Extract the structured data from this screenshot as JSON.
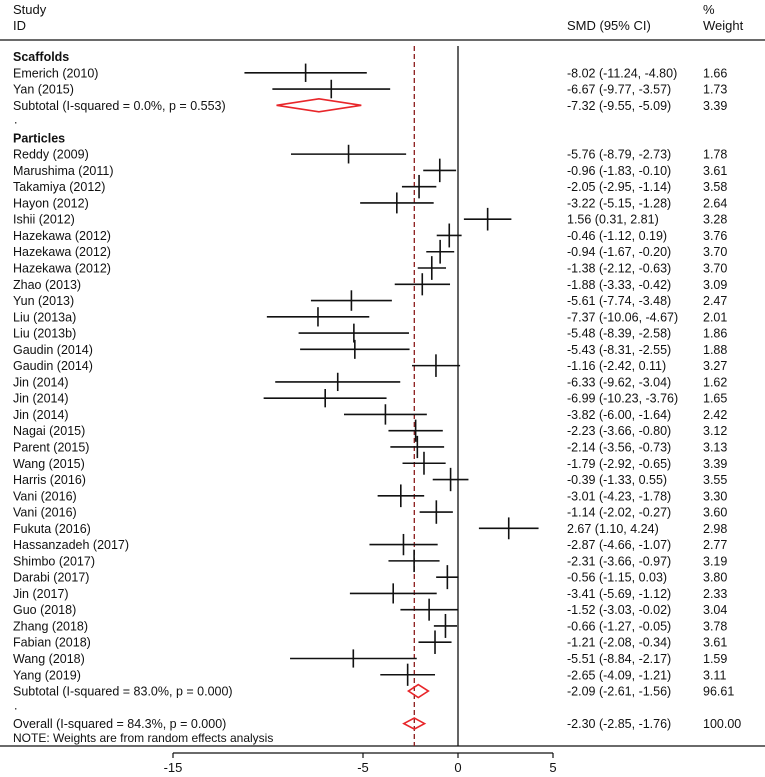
{
  "chart_data": {
    "type": "forest",
    "title": "",
    "xlabel": "",
    "xlim": [
      -15,
      5
    ],
    "xticks": [
      -15,
      -5,
      0,
      5
    ],
    "tick_labels": [
      "-15",
      "-5",
      "0",
      "5"
    ],
    "null_line": 0,
    "overall_line": -2.3,
    "header": {
      "study_line1": "Study",
      "study_line2": "ID",
      "effect": "SMD (95% CI)",
      "weight_line1": "%",
      "weight_line2": "Weight"
    },
    "note": "NOTE: Weights are from random effects analysis",
    "rows": [
      {
        "kind": "section",
        "label": "Scaffolds"
      },
      {
        "kind": "study",
        "label": "Emerich (2010)",
        "est": -8.02,
        "lo": -11.24,
        "hi": -4.8,
        "ci": "-8.02 (-11.24, -4.80)",
        "weight": "1.66"
      },
      {
        "kind": "study",
        "label": "Yan (2015)",
        "est": -6.67,
        "lo": -9.77,
        "hi": -3.57,
        "ci": "-6.67 (-9.77, -3.57)",
        "weight": "1.73"
      },
      {
        "kind": "subtotal",
        "label": "Subtotal  (I-squared = 0.0%, p = 0.553)",
        "est": -7.32,
        "lo": -9.55,
        "hi": -5.09,
        "ci": "-7.32 (-9.55, -5.09)",
        "weight": "3.39"
      },
      {
        "kind": "dot",
        "label": "."
      },
      {
        "kind": "section",
        "label": "Particles"
      },
      {
        "kind": "study",
        "label": "Reddy (2009)",
        "est": -5.76,
        "lo": -8.79,
        "hi": -2.73,
        "ci": "-5.76 (-8.79, -2.73)",
        "weight": "1.78"
      },
      {
        "kind": "study",
        "label": "Marushima (2011)",
        "est": -0.96,
        "lo": -1.83,
        "hi": -0.1,
        "ci": "-0.96 (-1.83, -0.10)",
        "weight": "3.61"
      },
      {
        "kind": "study",
        "label": "Takamiya (2012)",
        "est": -2.05,
        "lo": -2.95,
        "hi": -1.14,
        "ci": "-2.05 (-2.95, -1.14)",
        "weight": "3.58"
      },
      {
        "kind": "study",
        "label": "Hayon (2012)",
        "est": -3.22,
        "lo": -5.15,
        "hi": -1.28,
        "ci": "-3.22 (-5.15, -1.28)",
        "weight": "2.64"
      },
      {
        "kind": "study",
        "label": "Ishii (2012)",
        "est": 1.56,
        "lo": 0.31,
        "hi": 2.81,
        "ci": "1.56 (0.31, 2.81)",
        "weight": "3.28"
      },
      {
        "kind": "study",
        "label": "Hazekawa (2012)",
        "est": -0.46,
        "lo": -1.12,
        "hi": 0.19,
        "ci": "-0.46 (-1.12, 0.19)",
        "weight": "3.76"
      },
      {
        "kind": "study",
        "label": "Hazekawa (2012)",
        "est": -0.94,
        "lo": -1.67,
        "hi": -0.2,
        "ci": "-0.94 (-1.67, -0.20)",
        "weight": "3.70"
      },
      {
        "kind": "study",
        "label": "Hazekawa (2012)",
        "est": -1.38,
        "lo": -2.12,
        "hi": -0.63,
        "ci": "-1.38 (-2.12, -0.63)",
        "weight": "3.70"
      },
      {
        "kind": "study",
        "label": "Zhao (2013)",
        "est": -1.88,
        "lo": -3.33,
        "hi": -0.42,
        "ci": "-1.88 (-3.33, -0.42)",
        "weight": "3.09"
      },
      {
        "kind": "study",
        "label": "Yun (2013)",
        "est": -5.61,
        "lo": -7.74,
        "hi": -3.48,
        "ci": "-5.61 (-7.74, -3.48)",
        "weight": "2.47"
      },
      {
        "kind": "study",
        "label": "Liu (2013a)",
        "est": -7.37,
        "lo": -10.06,
        "hi": -4.67,
        "ci": "-7.37 (-10.06, -4.67)",
        "weight": "2.01"
      },
      {
        "kind": "study",
        "label": "Liu (2013b)",
        "est": -5.48,
        "lo": -8.39,
        "hi": -2.58,
        "ci": "-5.48 (-8.39, -2.58)",
        "weight": "1.86"
      },
      {
        "kind": "study",
        "label": "Gaudin (2014)",
        "est": -5.43,
        "lo": -8.31,
        "hi": -2.55,
        "ci": "-5.43 (-8.31, -2.55)",
        "weight": "1.88"
      },
      {
        "kind": "study",
        "label": "Gaudin (2014)",
        "est": -1.16,
        "lo": -2.42,
        "hi": 0.11,
        "ci": "-1.16 (-2.42, 0.11)",
        "weight": "3.27"
      },
      {
        "kind": "study",
        "label": "Jin (2014)",
        "est": -6.33,
        "lo": -9.62,
        "hi": -3.04,
        "ci": "-6.33 (-9.62, -3.04)",
        "weight": "1.62"
      },
      {
        "kind": "study",
        "label": "Jin (2014)",
        "est": -6.99,
        "lo": -10.23,
        "hi": -3.76,
        "ci": "-6.99 (-10.23, -3.76)",
        "weight": "1.65"
      },
      {
        "kind": "study",
        "label": "Jin (2014)",
        "est": -3.82,
        "lo": -6.0,
        "hi": -1.64,
        "ci": "-3.82 (-6.00, -1.64)",
        "weight": "2.42"
      },
      {
        "kind": "study",
        "label": "Nagai (2015)",
        "est": -2.23,
        "lo": -3.66,
        "hi": -0.8,
        "ci": "-2.23 (-3.66, -0.80)",
        "weight": "3.12"
      },
      {
        "kind": "study",
        "label": "Parent (2015)",
        "est": -2.14,
        "lo": -3.56,
        "hi": -0.73,
        "ci": "-2.14 (-3.56, -0.73)",
        "weight": "3.13"
      },
      {
        "kind": "study",
        "label": "Wang (2015)",
        "est": -1.79,
        "lo": -2.92,
        "hi": -0.65,
        "ci": "-1.79 (-2.92, -0.65)",
        "weight": "3.39"
      },
      {
        "kind": "study",
        "label": "Harris (2016)",
        "est": -0.39,
        "lo": -1.33,
        "hi": 0.55,
        "ci": "-0.39 (-1.33, 0.55)",
        "weight": "3.55"
      },
      {
        "kind": "study",
        "label": "Vani (2016)",
        "est": -3.01,
        "lo": -4.23,
        "hi": -1.78,
        "ci": "-3.01 (-4.23, -1.78)",
        "weight": "3.30"
      },
      {
        "kind": "study",
        "label": "Vani (2016)",
        "est": -1.14,
        "lo": -2.02,
        "hi": -0.27,
        "ci": "-1.14 (-2.02, -0.27)",
        "weight": "3.60"
      },
      {
        "kind": "study",
        "label": "Fukuta (2016)",
        "est": 2.67,
        "lo": 1.1,
        "hi": 4.24,
        "ci": "2.67 (1.10, 4.24)",
        "weight": "2.98"
      },
      {
        "kind": "study",
        "label": "Hassanzadeh (2017)",
        "est": -2.87,
        "lo": -4.66,
        "hi": -1.07,
        "ci": "-2.87 (-4.66, -1.07)",
        "weight": "2.77"
      },
      {
        "kind": "study",
        "label": "Shimbo (2017)",
        "est": -2.31,
        "lo": -3.66,
        "hi": -0.97,
        "ci": "-2.31 (-3.66, -0.97)",
        "weight": "3.19"
      },
      {
        "kind": "study",
        "label": "Darabi (2017)",
        "est": -0.56,
        "lo": -1.15,
        "hi": 0.03,
        "ci": "-0.56 (-1.15, 0.03)",
        "weight": "3.80"
      },
      {
        "kind": "study",
        "label": "Jin (2017)",
        "est": -3.41,
        "lo": -5.69,
        "hi": -1.12,
        "ci": "-3.41 (-5.69, -1.12)",
        "weight": "2.33"
      },
      {
        "kind": "study",
        "label": "Guo (2018)",
        "est": -1.52,
        "lo": -3.03,
        "hi": -0.02,
        "ci": "-1.52 (-3.03, -0.02)",
        "weight": "3.04"
      },
      {
        "kind": "study",
        "label": "Zhang (2018)",
        "est": -0.66,
        "lo": -1.27,
        "hi": -0.05,
        "ci": "-0.66 (-1.27, -0.05)",
        "weight": "3.78"
      },
      {
        "kind": "study",
        "label": "Fabian (2018)",
        "est": -1.21,
        "lo": -2.08,
        "hi": -0.34,
        "ci": "-1.21 (-2.08, -0.34)",
        "weight": "3.61"
      },
      {
        "kind": "study",
        "label": "Wang (2018)",
        "est": -5.51,
        "lo": -8.84,
        "hi": -2.17,
        "ci": "-5.51 (-8.84, -2.17)",
        "weight": "1.59"
      },
      {
        "kind": "study",
        "label": "Yang (2019)",
        "est": -2.65,
        "lo": -4.09,
        "hi": -1.21,
        "ci": "-2.65 (-4.09, -1.21)",
        "weight": "3.11"
      },
      {
        "kind": "subtotal",
        "label": "Subtotal  (I-squared = 83.0%, p = 0.000)",
        "est": -2.09,
        "lo": -2.61,
        "hi": -1.56,
        "ci": "-2.09 (-2.61, -1.56)",
        "weight": "96.61"
      },
      {
        "kind": "dot",
        "label": "."
      },
      {
        "kind": "overall",
        "label": "Overall  (I-squared = 84.3%, p = 0.000)",
        "est": -2.3,
        "lo": -2.85,
        "hi": -1.76,
        "ci": "-2.30 (-2.85, -1.76)",
        "weight": "100.00"
      }
    ],
    "colors": {
      "ink": "#111111",
      "diamond": "#e8262a",
      "overall_line": "#8b1a1a"
    }
  }
}
